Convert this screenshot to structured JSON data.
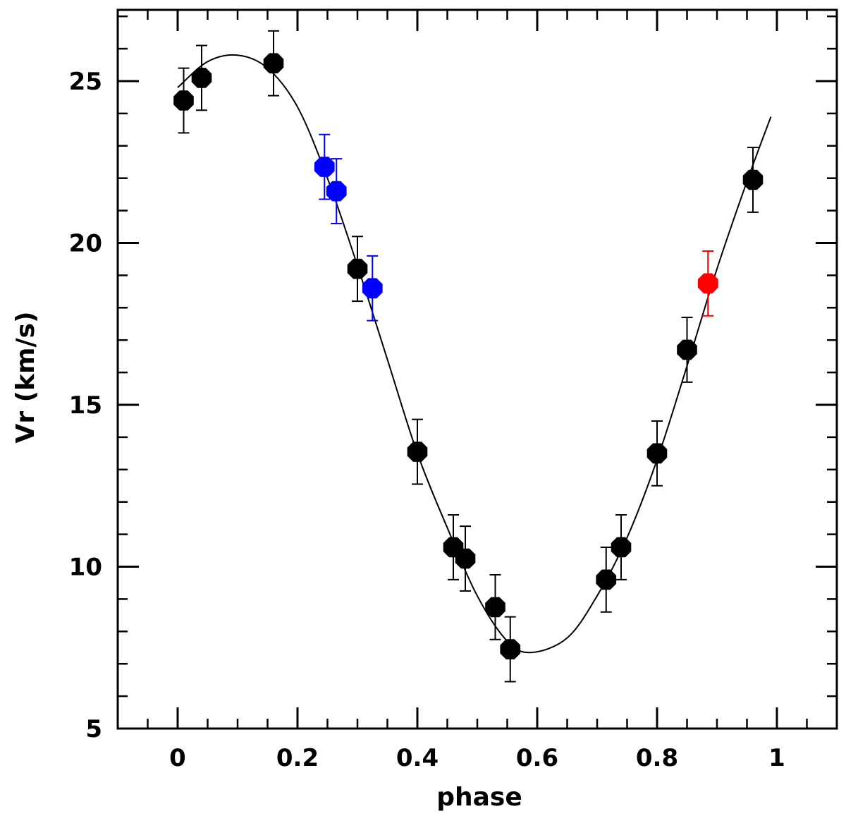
{
  "chart_data": {
    "type": "scatter",
    "title": "",
    "xlabel": "phase",
    "ylabel": "Vr (km/s)",
    "xlim": [
      -0.1,
      1.1
    ],
    "ylim": [
      5,
      27.2
    ],
    "xticks_major": [
      0,
      0.2,
      0.4,
      0.6,
      0.8,
      1
    ],
    "xtick_labels": [
      "0",
      "0.2",
      "0.4",
      "0.6",
      "0.8",
      "1"
    ],
    "xticks_minor_step": 0.05,
    "yticks_major": [
      5,
      10,
      15,
      20,
      25
    ],
    "ytick_labels": [
      "5",
      "10",
      "15",
      "20",
      "25"
    ],
    "yticks_minor_step": 1,
    "grid": false,
    "error": 1.0,
    "series": [
      {
        "name": "black",
        "color": "#000000",
        "points": [
          {
            "x": 0.01,
            "y": 24.4
          },
          {
            "x": 0.04,
            "y": 25.1
          },
          {
            "x": 0.16,
            "y": 25.55
          },
          {
            "x": 0.3,
            "y": 19.2
          },
          {
            "x": 0.4,
            "y": 13.55
          },
          {
            "x": 0.46,
            "y": 10.6
          },
          {
            "x": 0.48,
            "y": 10.25
          },
          {
            "x": 0.53,
            "y": 8.75
          },
          {
            "x": 0.555,
            "y": 7.45
          },
          {
            "x": 0.715,
            "y": 9.6
          },
          {
            "x": 0.74,
            "y": 10.6
          },
          {
            "x": 0.8,
            "y": 13.5
          },
          {
            "x": 0.85,
            "y": 16.7
          },
          {
            "x": 0.96,
            "y": 21.95
          }
        ]
      },
      {
        "name": "blue",
        "color": "#0000ff",
        "points": [
          {
            "x": 0.245,
            "y": 22.35
          },
          {
            "x": 0.265,
            "y": 21.6
          },
          {
            "x": 0.325,
            "y": 18.6
          }
        ]
      },
      {
        "name": "red",
        "color": "#ff0000",
        "points": [
          {
            "x": 0.885,
            "y": 18.75
          }
        ]
      }
    ],
    "fit_curve": {
      "type": "line",
      "color": "#000000",
      "x": [
        0.0,
        0.05,
        0.1,
        0.15,
        0.2,
        0.25,
        0.3,
        0.35,
        0.4,
        0.45,
        0.5,
        0.55,
        0.59,
        0.65,
        0.7,
        0.75,
        0.8,
        0.85,
        0.9,
        0.95,
        0.99
      ],
      "y": [
        24.8,
        25.6,
        25.8,
        25.4,
        24.2,
        22.0,
        19.3,
        16.4,
        13.5,
        11.2,
        9.1,
        7.7,
        7.35,
        7.8,
        9.1,
        10.9,
        13.3,
        16.2,
        19.2,
        21.9,
        23.9
      ]
    }
  }
}
